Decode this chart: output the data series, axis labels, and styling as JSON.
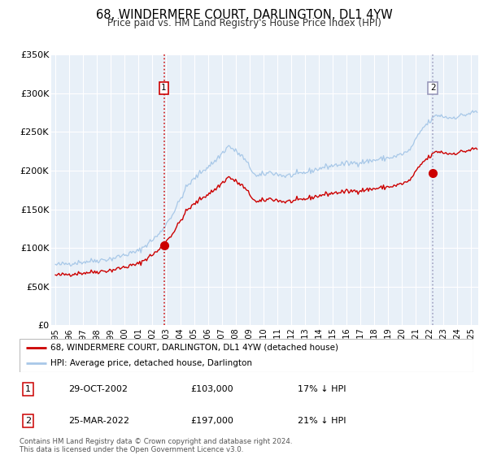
{
  "title": "68, WINDERMERE COURT, DARLINGTON, DL1 4YW",
  "subtitle": "Price paid vs. HM Land Registry's House Price Index (HPI)",
  "ylim": [
    0,
    350000
  ],
  "yticks": [
    0,
    50000,
    100000,
    150000,
    200000,
    250000,
    300000,
    350000
  ],
  "ytick_labels": [
    "£0",
    "£50K",
    "£100K",
    "£150K",
    "£200K",
    "£250K",
    "£300K",
    "£350K"
  ],
  "xlim_start": 1994.7,
  "xlim_end": 2025.5,
  "xticks": [
    1995,
    1996,
    1997,
    1998,
    1999,
    2000,
    2001,
    2002,
    2003,
    2004,
    2005,
    2006,
    2007,
    2008,
    2009,
    2010,
    2011,
    2012,
    2013,
    2014,
    2015,
    2016,
    2017,
    2018,
    2019,
    2020,
    2021,
    2022,
    2023,
    2024,
    2025
  ],
  "xtick_labels": [
    "95",
    "96",
    "97",
    "98",
    "99",
    "00",
    "01",
    "02",
    "03",
    "04",
    "05",
    "06",
    "07",
    "08",
    "09",
    "10",
    "11",
    "12",
    "13",
    "14",
    "15",
    "16",
    "17",
    "18",
    "19",
    "20",
    "21",
    "22",
    "23",
    "24",
    "25"
  ],
  "xtick_labels_full": [
    "1995",
    "1996",
    "1997",
    "1998",
    "1999",
    "2000",
    "2001",
    "2002",
    "2003",
    "2004",
    "2005",
    "2006",
    "2007",
    "2008",
    "2009",
    "2010",
    "2011",
    "2012",
    "2013",
    "2014",
    "2015",
    "2016",
    "2017",
    "2018",
    "2019",
    "2020",
    "2021",
    "2022",
    "2023",
    "2024",
    "2025"
  ],
  "hpi_color": "#a8c8e8",
  "price_color": "#cc0000",
  "vline1_color": "#cc0000",
  "vline2_color": "#9999bb",
  "sale1_x": 2002.83,
  "sale1_y": 103000,
  "sale2_x": 2022.23,
  "sale2_y": 197000,
  "legend1_text": "68, WINDERMERE COURT, DARLINGTON, DL1 4YW (detached house)",
  "legend2_text": "HPI: Average price, detached house, Darlington",
  "annotation1_date": "29-OCT-2002",
  "annotation1_price": "£103,000",
  "annotation1_hpi": "17% ↓ HPI",
  "annotation2_date": "25-MAR-2022",
  "annotation2_price": "£197,000",
  "annotation2_hpi": "21% ↓ HPI",
  "footer_text": "Contains HM Land Registry data © Crown copyright and database right 2024.\nThis data is licensed under the Open Government Licence v3.0.",
  "plot_bg_color": "#e8f0f8",
  "grid_color": "#ffffff",
  "hpi_anchors_t": [
    1995.0,
    1997.0,
    1999.0,
    2001.0,
    2002.5,
    2003.5,
    2004.5,
    2005.5,
    2006.5,
    2007.5,
    2008.5,
    2009.5,
    2010.5,
    2011.5,
    2012.5,
    2013.5,
    2014.5,
    2015.5,
    2016.5,
    2017.5,
    2018.5,
    2019.5,
    2020.5,
    2021.5,
    2022.5,
    2023.5,
    2024.5,
    2025.3
  ],
  "hpi_anchors_v": [
    78000,
    82000,
    86000,
    96000,
    118000,
    145000,
    180000,
    198000,
    212000,
    232000,
    218000,
    192000,
    198000,
    193000,
    195000,
    200000,
    205000,
    208000,
    210000,
    212000,
    215000,
    218000,
    225000,
    255000,
    272000,
    268000,
    272000,
    276000
  ],
  "price_scale": 0.827,
  "noise_seed": 42,
  "noise_std": 1800
}
